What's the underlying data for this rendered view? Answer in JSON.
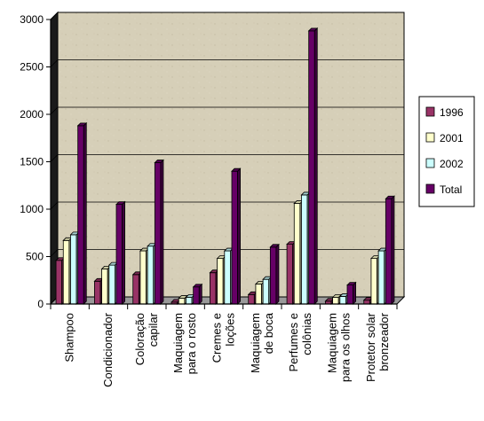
{
  "chart_data": {
    "type": "bar",
    "categories": [
      [
        "Shampoo"
      ],
      [
        "Condicionador"
      ],
      [
        "Coloração",
        "capilar"
      ],
      [
        "Maquiagem",
        "para o rosto"
      ],
      [
        "Cremes e",
        "loções"
      ],
      [
        "Maquiagem",
        "de boca"
      ],
      [
        "Perfumes e",
        "colônias"
      ],
      [
        "Maquiagem",
        "para os olhos"
      ],
      [
        "Protetor solar",
        "bronzeador"
      ]
    ],
    "series": [
      {
        "name": "1996",
        "color": "#993366",
        "values": [
          460,
          240,
          310,
          20,
          330,
          100,
          630,
          30,
          40
        ]
      },
      {
        "name": "2001",
        "color": "#ffffcc",
        "values": [
          670,
          370,
          560,
          60,
          480,
          210,
          1060,
          70,
          480
        ]
      },
      {
        "name": "2002",
        "color": "#ccffff",
        "values": [
          730,
          410,
          610,
          70,
          560,
          260,
          1150,
          80,
          560
        ]
      },
      {
        "name": "Total",
        "color": "#660066",
        "values": [
          1880,
          1050,
          1490,
          180,
          1400,
          600,
          2880,
          200,
          1110
        ]
      }
    ],
    "y_ticks": [
      "0",
      "500",
      "1000",
      "1500",
      "2000",
      "2500",
      "3000"
    ],
    "ylim": [
      0,
      3000
    ],
    "grid": true,
    "legend_position": "right",
    "title": "",
    "xlabel": "",
    "ylabel": ""
  }
}
